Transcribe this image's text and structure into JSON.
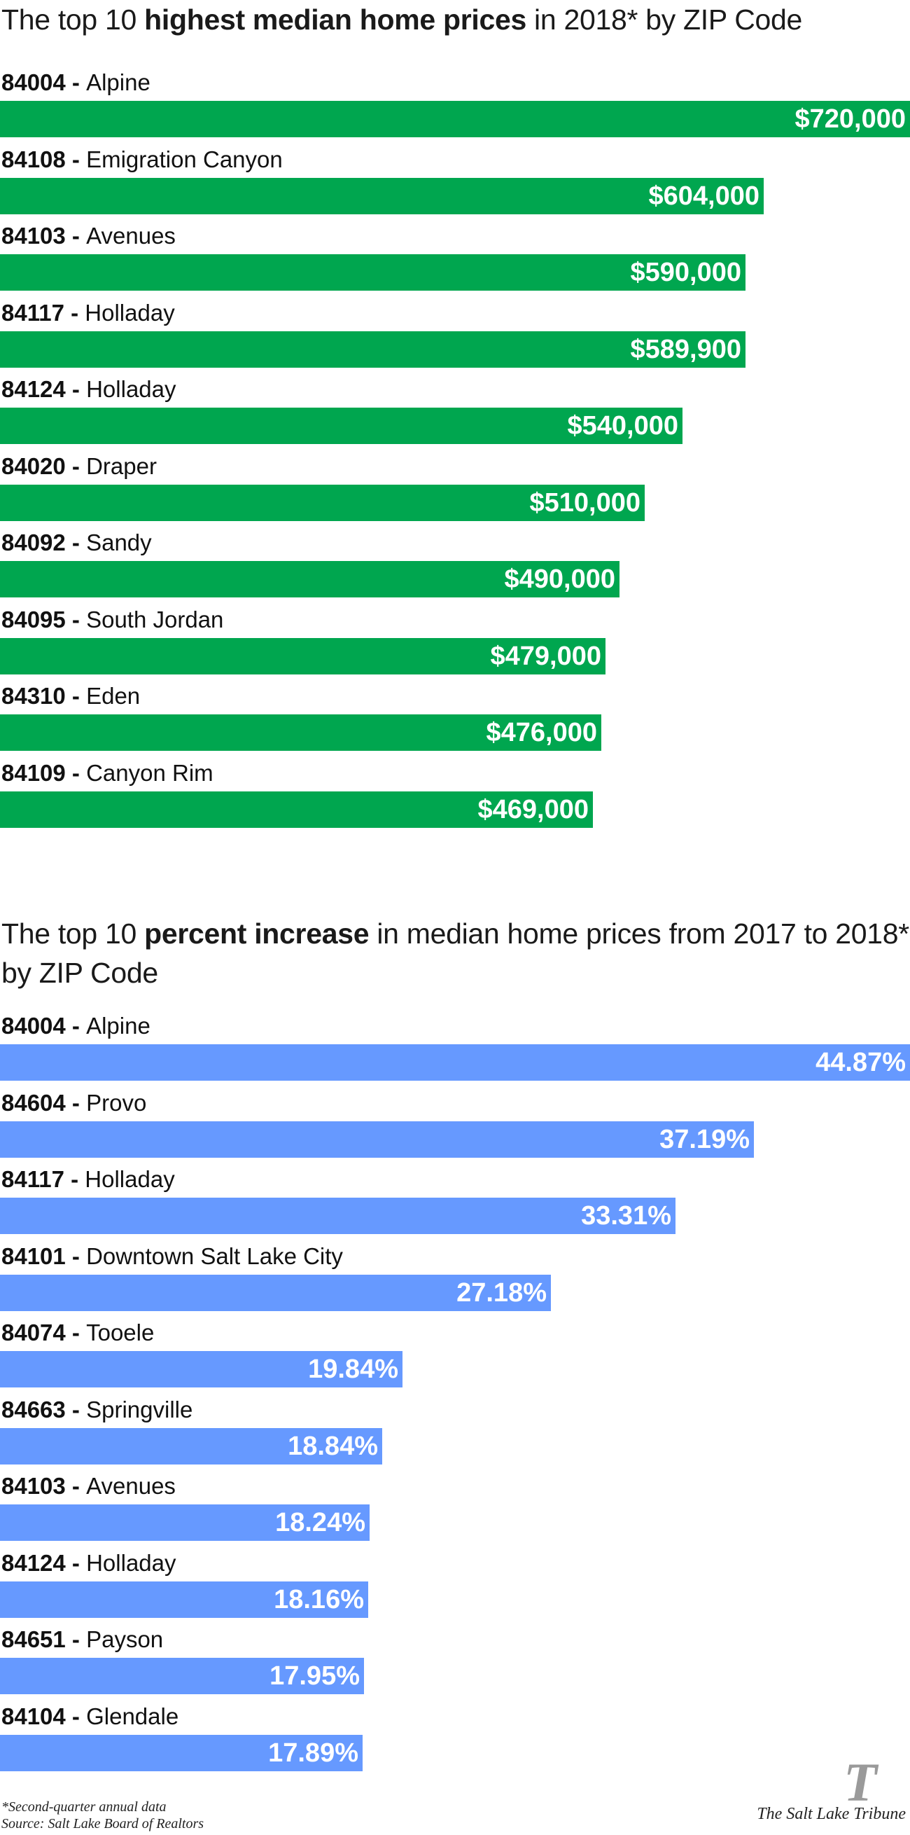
{
  "colors": {
    "chart1_bar": "#00a64f",
    "chart2_bar": "#6699ff"
  },
  "chart_data": [
    {
      "type": "bar",
      "orientation": "horizontal",
      "title_parts": [
        "The top 10 ",
        "highest median home prices",
        " in 2018* by ZIP Code"
      ],
      "xlim": [
        0,
        720000
      ],
      "value_prefix": "$",
      "value_suffix": "",
      "categories": [
        {
          "zip": "84004",
          "name": "Alpine"
        },
        {
          "zip": "84108",
          "name": "Emigration Canyon"
        },
        {
          "zip": "84103",
          "name": "Avenues"
        },
        {
          "zip": "84117",
          "name": "Holladay"
        },
        {
          "zip": "84124",
          "name": "Holladay"
        },
        {
          "zip": "84020",
          "name": "Draper"
        },
        {
          "zip": "84092",
          "name": "Sandy"
        },
        {
          "zip": "84095",
          "name": "South Jordan"
        },
        {
          "zip": "84310",
          "name": "Eden"
        },
        {
          "zip": "84109",
          "name": "Canyon Rim"
        }
      ],
      "values": [
        720000,
        604000,
        590000,
        589900,
        540000,
        510000,
        490000,
        479000,
        476000,
        469000
      ],
      "value_labels": [
        "$720,000",
        "$604,000",
        "$590,000",
        "$589,900",
        "$540,000",
        "$510,000",
        "$490,000",
        "$479,000",
        "$476,000",
        "$469,000"
      ]
    },
    {
      "type": "bar",
      "orientation": "horizontal",
      "title_parts": [
        "The top 10 ",
        "percent increase",
        " in median home prices from 2017 to 2018* by ZIP Code"
      ],
      "xlim": [
        0,
        44.87
      ],
      "value_prefix": "",
      "value_suffix": "%",
      "categories": [
        {
          "zip": "84004",
          "name": "Alpine"
        },
        {
          "zip": "84604",
          "name": "Provo"
        },
        {
          "zip": "84117",
          "name": "Holladay"
        },
        {
          "zip": "84101",
          "name": "Downtown Salt Lake City"
        },
        {
          "zip": "84074",
          "name": "Tooele"
        },
        {
          "zip": "84663",
          "name": "Springville"
        },
        {
          "zip": "84103",
          "name": "Avenues"
        },
        {
          "zip": "84124",
          "name": "Holladay"
        },
        {
          "zip": "84651",
          "name": "Payson"
        },
        {
          "zip": "84104",
          "name": "Glendale"
        }
      ],
      "values": [
        44.87,
        37.19,
        33.31,
        27.18,
        19.84,
        18.84,
        18.24,
        18.16,
        17.95,
        17.89
      ],
      "value_labels": [
        "44.87%",
        "37.19%",
        "33.31%",
        "27.18%",
        "19.84%",
        "18.84%",
        "18.24%",
        "18.16%",
        "17.95%",
        "17.89%"
      ]
    }
  ],
  "footer": {
    "note": "*Second-quarter annual data",
    "source": "Source: Salt Lake Board of Realtors"
  },
  "logo": {
    "mark": "T",
    "name": "The Salt Lake Tribune"
  }
}
